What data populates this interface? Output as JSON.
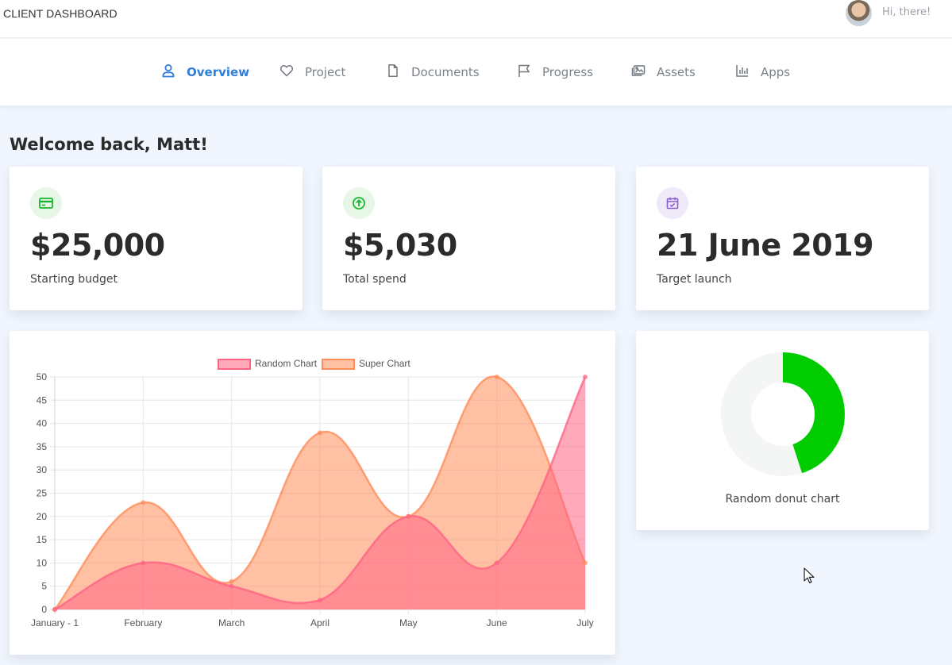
{
  "header": {
    "brand": "CLIENT DASHBOARD",
    "greeting": "Hi, there!"
  },
  "nav": [
    {
      "label": "Overview",
      "icon": "user-icon",
      "active": true
    },
    {
      "label": "Project",
      "icon": "heart-icon",
      "active": false
    },
    {
      "label": "Documents",
      "icon": "document-icon",
      "active": false
    },
    {
      "label": "Progress",
      "icon": "flag-icon",
      "active": false
    },
    {
      "label": "Assets",
      "icon": "images-icon",
      "active": false
    },
    {
      "label": "Apps",
      "icon": "bar-chart-icon",
      "active": false
    }
  ],
  "welcome": "Welcome back, Matt!",
  "stats": [
    {
      "value": "$25,000",
      "label": "Starting budget",
      "icon": "credit-card-icon",
      "color": "#19b72f",
      "bg": "#e6f7e7"
    },
    {
      "value": "$5,030",
      "label": "Total spend",
      "icon": "arrow-up-circle-icon",
      "color": "#19b72f",
      "bg": "#e6f7e7"
    },
    {
      "value": "21 June 2019",
      "label": "Target launch",
      "icon": "calendar-check-icon",
      "color": "#8a5cd6",
      "bg": "#efe9fa"
    }
  ],
  "chart_data": [
    {
      "type": "area",
      "categories": [
        "January - 1",
        "February",
        "March",
        "April",
        "May",
        "June",
        "July"
      ],
      "series": [
        {
          "name": "Random Chart",
          "values": [
            0,
            10,
            5,
            2,
            20,
            10,
            50
          ],
          "color": "#ff6384",
          "fill": "rgba(255,99,132,0.55)"
        },
        {
          "name": "Super Chart",
          "values": [
            0,
            23,
            6,
            38,
            20,
            50,
            10
          ],
          "color": "#ff8c5a",
          "fill": "rgba(255,140,90,0.55)"
        }
      ],
      "ylim": [
        0,
        50
      ],
      "yticks": [
        0,
        5,
        10,
        15,
        20,
        25,
        30,
        35,
        40,
        45,
        50
      ],
      "grid": true,
      "legend": "top"
    },
    {
      "type": "pie",
      "title": "Random donut chart",
      "values": [
        45,
        55
      ],
      "colors": [
        "#00cc00",
        "#f4f6f5"
      ]
    }
  ]
}
